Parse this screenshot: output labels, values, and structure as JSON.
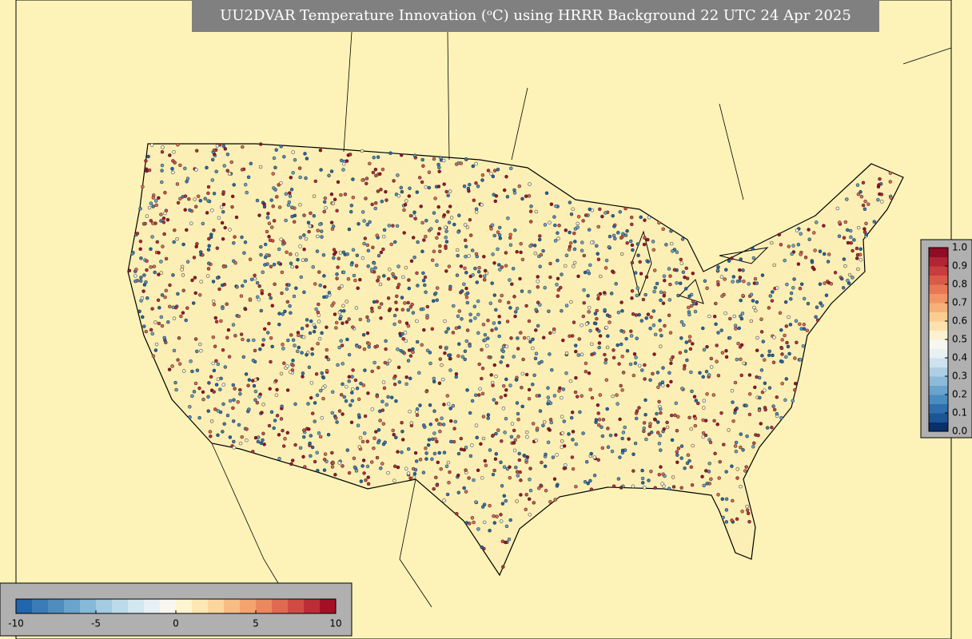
{
  "map": {
    "title": "UU2DVAR Temperature Innovation (ᵒC) using HRRR Background 22 UTC 24 Apr 2025",
    "colorbar_bottom": {
      "range": [
        -10,
        10
      ],
      "ticks": [
        -10,
        -5,
        0,
        5,
        10
      ],
      "colors": [
        "#2166ac",
        "#3a7bb5",
        "#4f8dbf",
        "#6aa3cb",
        "#86b8d8",
        "#a3cbe2",
        "#bcdaea",
        "#d3e7f1",
        "#e7f1f5",
        "#f7f7f0",
        "#fdf5cf",
        "#fde8b3",
        "#fcd69c",
        "#f8bd84",
        "#f4a46f",
        "#ec8860",
        "#e06a51",
        "#cf4c44",
        "#bd2d37",
        "#a50f26"
      ]
    },
    "colorbar_right": {
      "range": [
        0,
        1
      ],
      "ticks": [
        {
          "value": 0,
          "label": "0.0"
        },
        0.1,
        0.2,
        0.3,
        0.4,
        0.5,
        0.6,
        0.7,
        0.8,
        0.9,
        {
          "value": 1,
          "label": "1.0"
        }
      ],
      "colors": [
        "#08306b",
        "#1c5596",
        "#2f6fad",
        "#4a8bc0",
        "#6aa3cb",
        "#8cbad8",
        "#aecfe3",
        "#cde2ee",
        "#e8f0f3",
        "#f7f6ef",
        "#fdf2d0",
        "#fde2b0",
        "#fccd92",
        "#f7b079",
        "#f29464",
        "#e87756",
        "#da5a4a",
        "#c83c3d",
        "#b02433",
        "#8e0c25"
      ]
    }
  }
}
